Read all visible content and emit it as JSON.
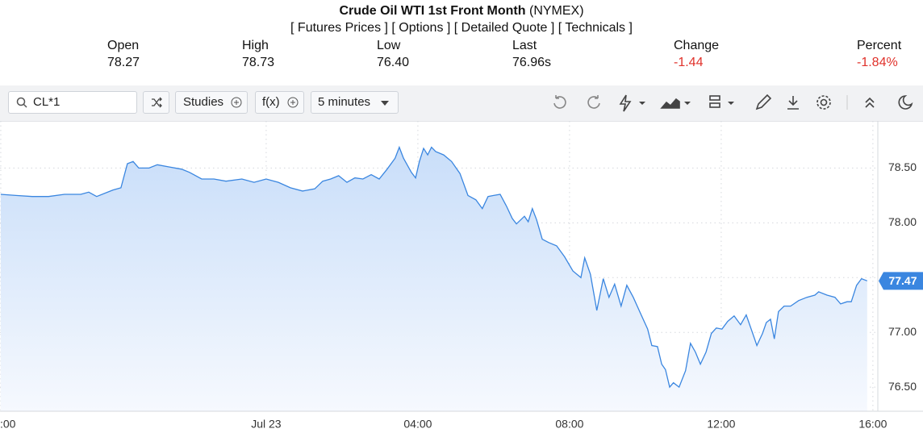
{
  "header": {
    "title": "Crude Oil WTI 1st Front Month",
    "exchange": "(NYMEX)",
    "links": [
      "[ Futures Prices ]",
      "[ Options ]",
      "[ Detailed Quote ]",
      "[ Technicals ]"
    ],
    "stats": [
      {
        "label": "Open",
        "value": "78.27"
      },
      {
        "label": "High",
        "value": "78.73"
      },
      {
        "label": "Low",
        "value": "76.40"
      },
      {
        "label": "Last",
        "value": "76.96s"
      },
      {
        "label": "Change",
        "value": "-1.44"
      },
      {
        "label": "Percent",
        "value": "-1.84%"
      }
    ]
  },
  "toolbar": {
    "symbol": "CL*1",
    "studies": "Studies",
    "function": "f(x)",
    "interval": "5 minutes"
  },
  "chart_data": {
    "type": "area",
    "color": "#3a86e0",
    "last_label": "77.47",
    "x": [
      -7,
      -6.6,
      -6.17,
      -5.74,
      -5.32,
      -4.89,
      -4.68,
      -4.47,
      -4.04,
      -3.83,
      -3.66,
      -3.51,
      -3.36,
      -3.09,
      -2.87,
      -2.55,
      -2.23,
      -2.02,
      -1.7,
      -1.38,
      -1.06,
      -0.64,
      -0.32,
      0,
      0.32,
      0.64,
      0.96,
      1.28,
      1.49,
      1.7,
      1.91,
      2.13,
      2.34,
      2.55,
      2.77,
      2.98,
      3.19,
      3.4,
      3.51,
      3.62,
      3.83,
      3.94,
      4.04,
      4.15,
      4.26,
      4.36,
      4.47,
      4.68,
      4.89,
      5.11,
      5.32,
      5.53,
      5.7,
      5.85,
      6,
      6.17,
      6.34,
      6.49,
      6.6,
      6.81,
      6.91,
      7.02,
      7.13,
      7.28,
      7.45,
      7.66,
      7.87,
      8.09,
      8.3,
      8.4,
      8.55,
      8.72,
      8.89,
      9.04,
      9.19,
      9.36,
      9.51,
      9.68,
      9.89,
      10.06,
      10.17,
      10.32,
      10.43,
      10.53,
      10.64,
      10.74,
      10.89,
      11.06,
      11.19,
      11.32,
      11.45,
      11.6,
      11.74,
      11.87,
      12.02,
      12.17,
      12.34,
      12.51,
      12.66,
      12.81,
      12.94,
      13.09,
      13.19,
      13.3,
      13.4,
      13.51,
      13.66,
      13.83,
      14.04,
      14.26,
      14.47,
      14.57,
      14.79,
      15,
      15.15,
      15.32,
      15.43,
      15.57,
      15.7,
      15.85
    ],
    "values": [
      78.26,
      78.25,
      78.24,
      78.24,
      78.26,
      78.26,
      78.28,
      78.24,
      78.3,
      78.32,
      78.54,
      78.56,
      78.5,
      78.5,
      78.53,
      78.51,
      78.49,
      78.46,
      78.4,
      78.4,
      78.38,
      78.4,
      78.37,
      78.4,
      78.37,
      78.32,
      78.29,
      78.31,
      78.38,
      78.4,
      78.43,
      78.37,
      78.41,
      78.4,
      78.44,
      78.4,
      78.49,
      78.59,
      78.69,
      78.59,
      78.46,
      78.41,
      78.56,
      78.68,
      78.62,
      78.69,
      78.65,
      78.62,
      78.56,
      78.45,
      78.25,
      78.21,
      78.13,
      78.24,
      78.25,
      78.26,
      78.15,
      78.04,
      77.99,
      78.06,
      78.01,
      78.13,
      78.03,
      77.85,
      77.82,
      77.79,
      77.69,
      77.56,
      77.5,
      77.68,
      77.53,
      77.2,
      77.49,
      77.32,
      77.44,
      77.24,
      77.43,
      77.32,
      77.16,
      77.03,
      76.88,
      76.87,
      76.71,
      76.66,
      76.5,
      76.54,
      76.5,
      76.65,
      76.9,
      76.82,
      76.71,
      76.82,
      76.99,
      77.04,
      77.03,
      77.1,
      77.15,
      77.07,
      77.16,
      77.01,
      76.88,
      76.99,
      77.09,
      77.12,
      76.94,
      77.19,
      77.24,
      77.24,
      77.29,
      77.32,
      77.34,
      77.37,
      77.34,
      77.32,
      77.26,
      77.28,
      77.28,
      77.43,
      77.49,
      77.47
    ],
    "xlim": [
      -7.02,
      16.13
    ],
    "xticks": [
      {
        "value": -7,
        "label": ":00"
      },
      {
        "value": 0,
        "label": "Jul 23"
      },
      {
        "value": 4,
        "label": "04:00"
      },
      {
        "value": 8,
        "label": "08:00"
      },
      {
        "value": 12,
        "label": "12:00"
      },
      {
        "value": 16,
        "label": "16:00"
      }
    ],
    "ylim": [
      76.28,
      78.93
    ],
    "yticks": [
      {
        "value": 76.5,
        "label": "76.50"
      },
      {
        "value": 77,
        "label": "77.00"
      },
      {
        "value": 77.5,
        "label": null
      },
      {
        "value": 78,
        "label": "78.00"
      },
      {
        "value": 78.5,
        "label": "78.50"
      }
    ],
    "grid": true
  }
}
